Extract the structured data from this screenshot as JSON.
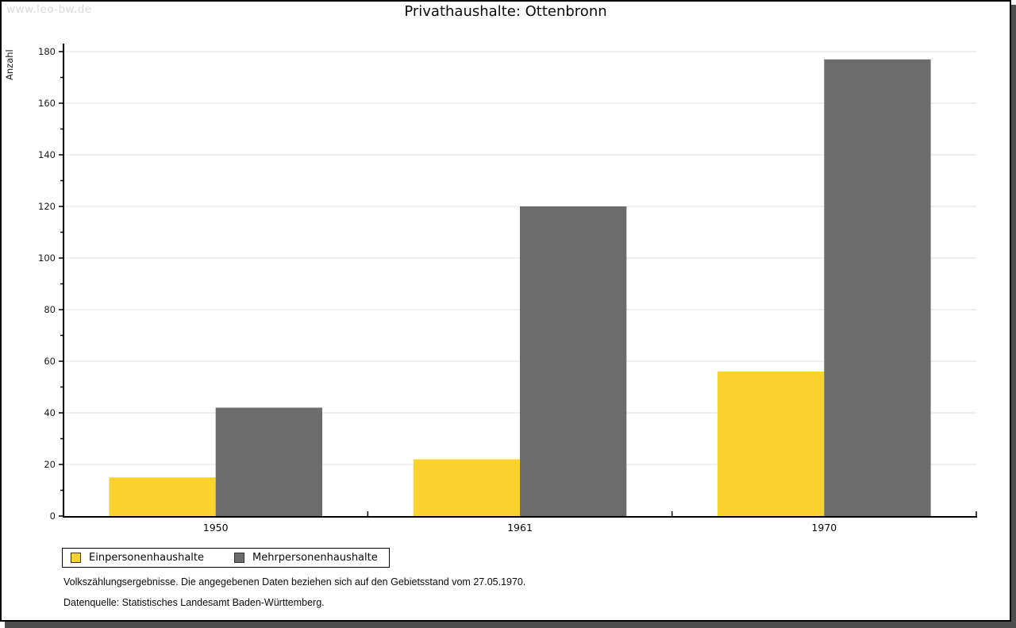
{
  "watermark": "www.leo-bw.de",
  "title": "Privathaushalte: Ottenbronn",
  "chart_data": {
    "type": "bar",
    "title": "Privathaushalte: Ottenbronn",
    "categories": [
      "1950",
      "1961",
      "1970"
    ],
    "series": [
      {
        "name": "Einpersonenhaushalte",
        "values": [
          15,
          22,
          56
        ],
        "color": "#FBD32F"
      },
      {
        "name": "Mehrpersonenhaushalte",
        "values": [
          42,
          120,
          177
        ],
        "color": "#6C6C6C"
      }
    ],
    "xlabel": "",
    "ylabel": "Anzahl",
    "ylim": [
      0,
      180
    ],
    "ytick_step": 20,
    "yminor_step": 10,
    "grid": "horizontal-major",
    "gridline_color": "#e2e2e2",
    "axis_color": "#000000",
    "legend_position": "bottom-left"
  },
  "footnotes": {
    "line1": "Volkszählungsergebnisse. Die angegebenen Daten beziehen sich auf den Gebietsstand vom 27.05.1970.",
    "line2": "Datenquelle: Statistisches Landesamt Baden-Württemberg."
  }
}
